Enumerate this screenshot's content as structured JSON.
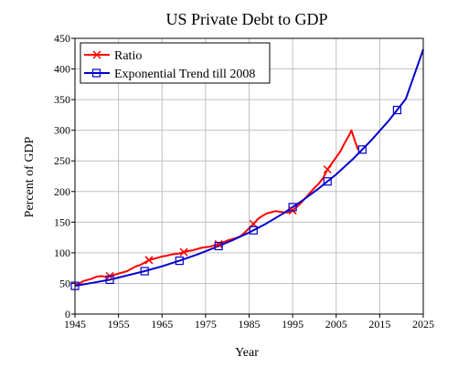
{
  "chart_data": {
    "type": "line",
    "title": "US Private Debt to GDP",
    "xlabel": "Year",
    "ylabel": "Percent of GDP",
    "xlim": [
      1945,
      2025
    ],
    "ylim": [
      0,
      450
    ],
    "x_ticks": [
      1945,
      1955,
      1965,
      1975,
      1985,
      1995,
      2005,
      2015,
      2025
    ],
    "y_ticks": [
      0,
      50,
      100,
      150,
      200,
      250,
      300,
      350,
      400,
      450
    ],
    "grid": true,
    "legend_position": "top-left",
    "series": [
      {
        "name": "Ratio",
        "color": "#ff0000",
        "marker": "x",
        "marker_x": [
          1953,
          1962,
          1970,
          1978,
          1986,
          1995,
          2003
        ],
        "x": [
          1945,
          1946,
          1947,
          1948,
          1949,
          1950,
          1951,
          1952,
          1953,
          1954,
          1955,
          1956,
          1957,
          1958,
          1959,
          1960,
          1961,
          1962,
          1963,
          1964,
          1965,
          1966,
          1967,
          1968,
          1969,
          1970,
          1971,
          1972,
          1973,
          1974,
          1975,
          1976,
          1977,
          1978,
          1979,
          1980,
          1981,
          1982,
          1983,
          1984,
          1985,
          1986,
          1987,
          1988,
          1989,
          1990,
          1991,
          1992,
          1993,
          1994,
          1995,
          1996,
          1997,
          1998,
          1999,
          2000,
          2001,
          2002,
          2003,
          2004,
          2005,
          2006,
          2007,
          2008,
          2008.5,
          2009,
          2010
        ],
        "y": [
          48,
          50,
          54,
          56,
          58,
          61,
          62,
          61,
          62,
          64,
          66,
          68,
          70,
          74,
          78,
          80,
          84,
          88,
          90,
          92,
          94,
          95,
          97,
          98,
          99,
          101,
          103,
          104,
          106,
          108,
          109,
          110,
          112,
          114,
          117,
          120,
          122,
          124,
          127,
          133,
          140,
          147,
          155,
          160,
          164,
          166,
          168,
          167,
          166,
          166,
          169,
          175,
          182,
          190,
          198,
          206,
          213,
          222,
          236,
          246,
          256,
          266,
          280,
          292,
          300,
          289,
          268
        ]
      },
      {
        "name": "Exponential Trend till 2008",
        "color": "#0000cc",
        "marker": "square",
        "marker_x": [
          1945,
          1953,
          1961,
          1969,
          1978,
          1986,
          1995,
          2003,
          2011,
          2019
        ],
        "x": [
          1945,
          1949,
          1953,
          1957,
          1961,
          1965,
          1969,
          1973,
          1977,
          1981,
          1985,
          1989,
          1993,
          1997,
          2001,
          2005,
          2009,
          2013,
          2017,
          2021,
          2025
        ],
        "y": [
          46,
          51,
          56,
          63,
          70,
          78,
          87,
          97,
          108,
          120,
          133,
          148,
          165,
          184,
          205,
          228,
          254,
          283,
          315,
          351,
          432
        ]
      }
    ]
  }
}
